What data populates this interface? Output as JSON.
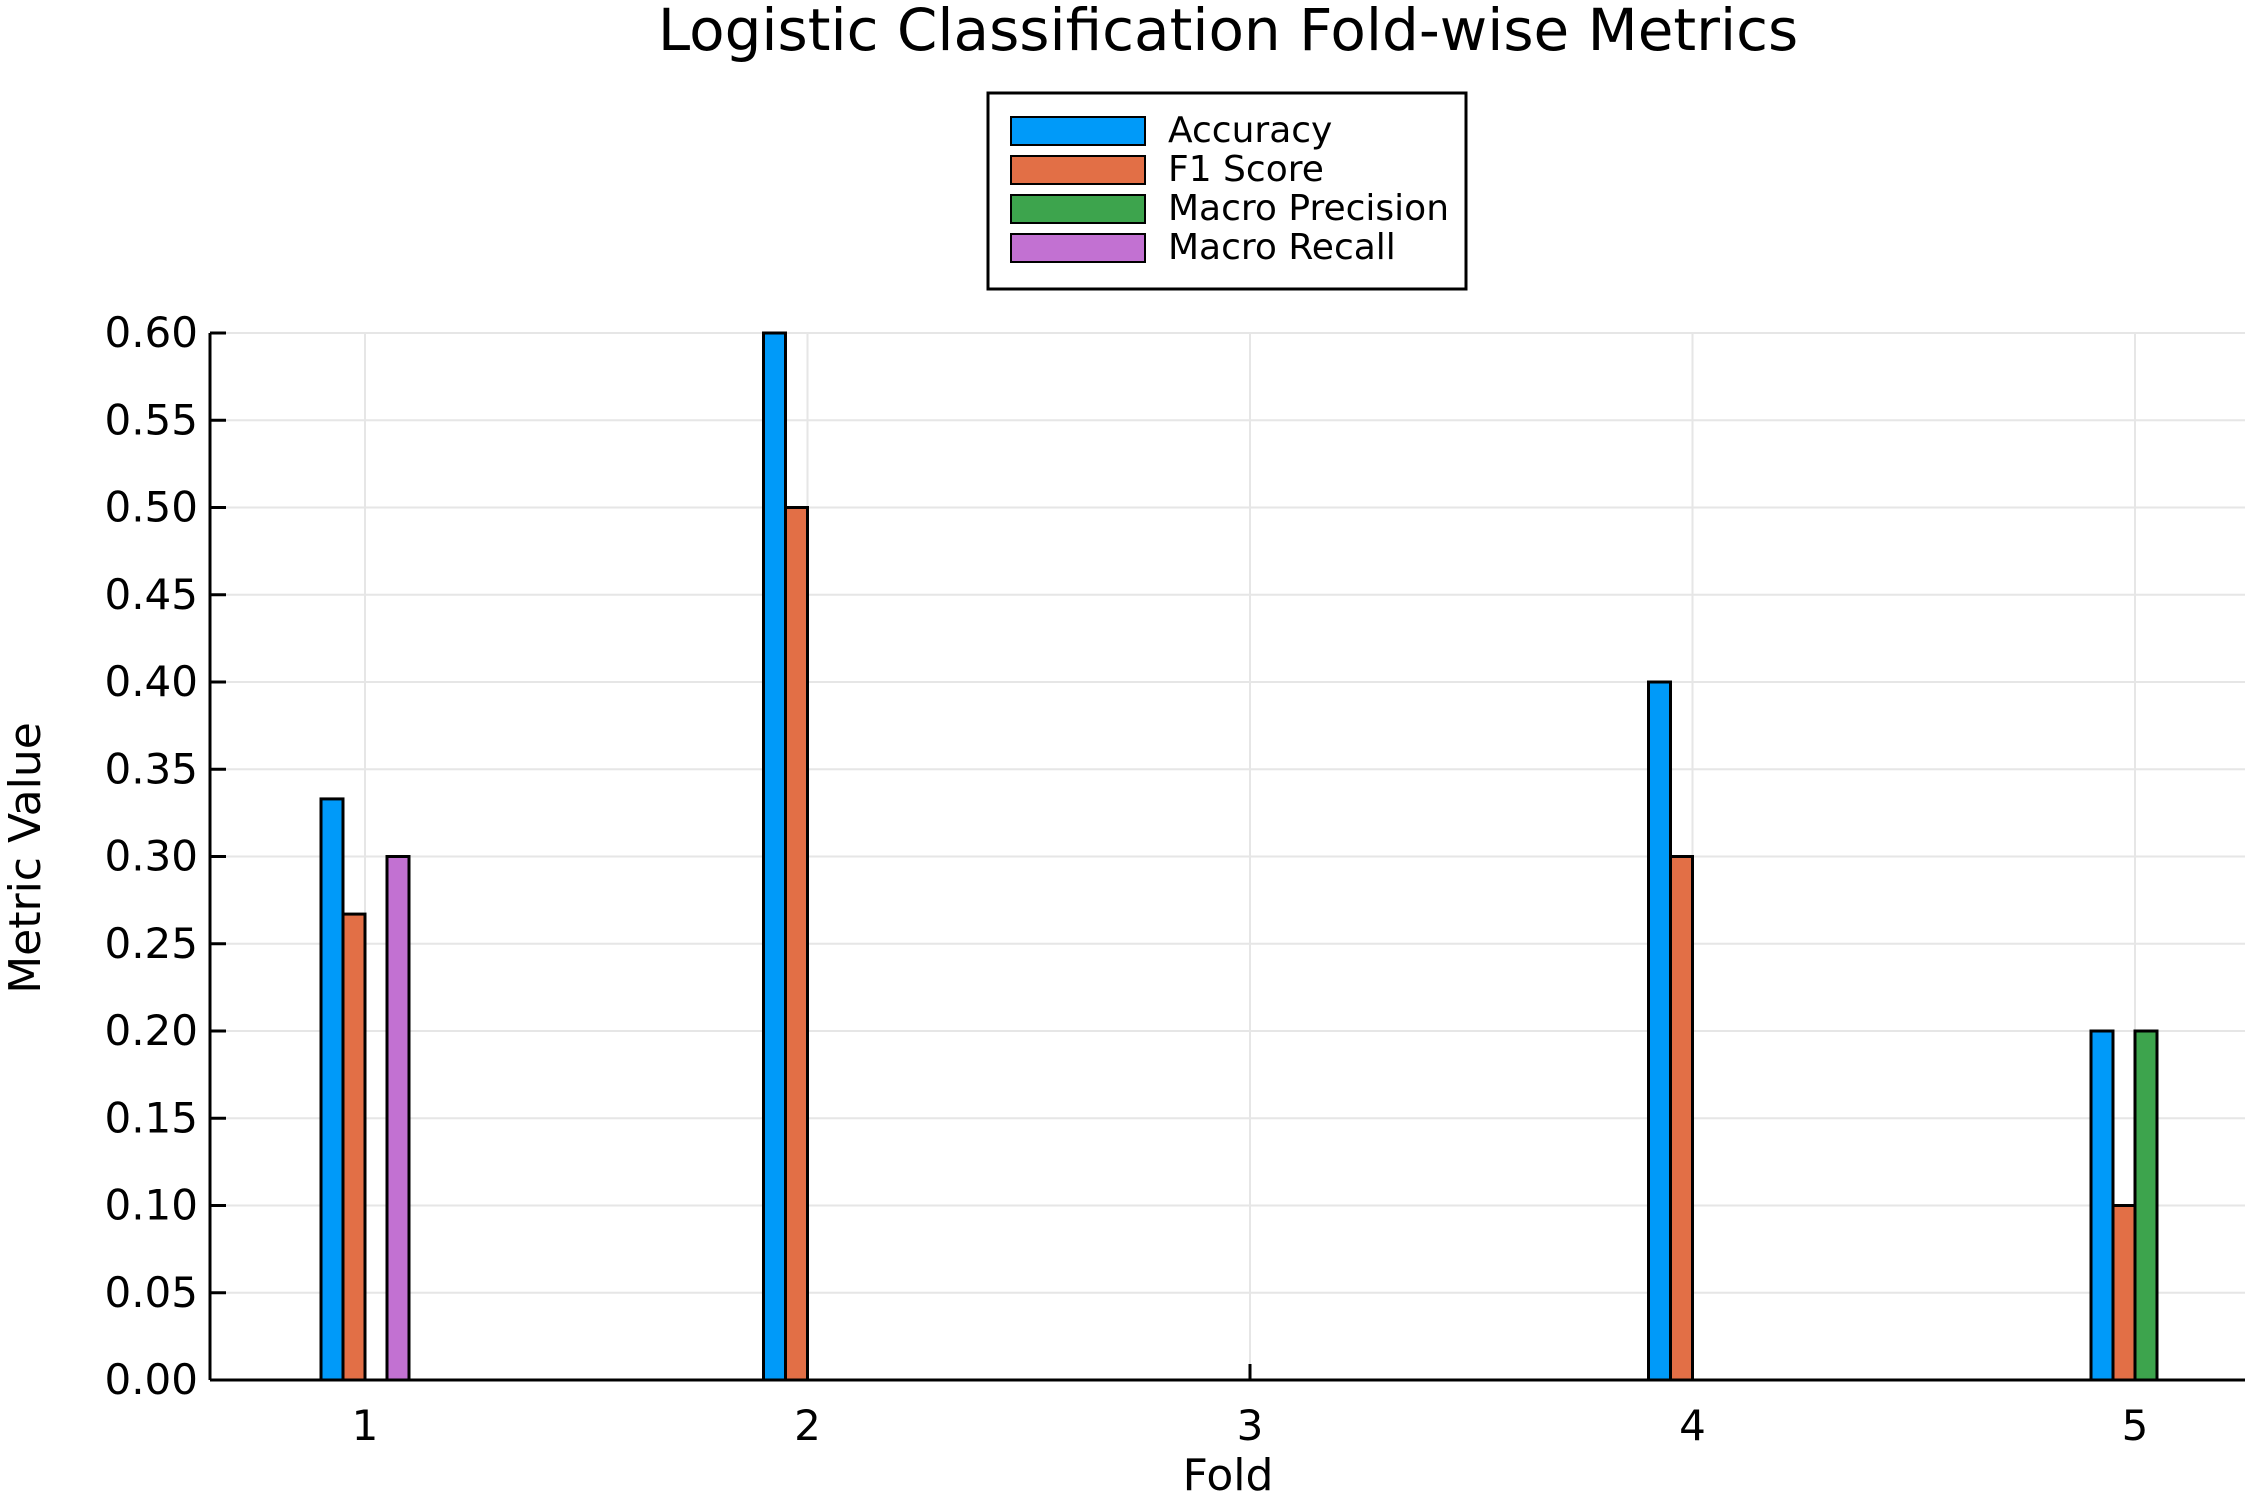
{
  "chart_data": {
    "type": "bar",
    "title": "Logistic Classification Fold-wise Metrics",
    "xlabel": "Fold",
    "ylabel": "Metric Value",
    "categories": [
      "1",
      "2",
      "3",
      "4",
      "5"
    ],
    "series": [
      {
        "name": "Accuracy",
        "color": "#009af9",
        "values": [
          0.333,
          0.6,
          0.0,
          0.4,
          0.2
        ]
      },
      {
        "name": "F1 Score",
        "color": "#e26f46",
        "values": [
          0.267,
          0.5,
          0.0,
          0.3,
          0.1
        ]
      },
      {
        "name": "Macro Precision",
        "color": "#3da44d",
        "values": [
          0.0,
          0.0,
          0.0,
          0.0,
          0.2
        ]
      },
      {
        "name": "Macro Recall",
        "color": "#c271d2",
        "values": [
          0.3,
          0.0,
          0.0,
          0.0,
          0.0
        ]
      }
    ],
    "ylim": [
      0,
      0.6
    ],
    "yticks": [
      "0.00",
      "0.05",
      "0.10",
      "0.15",
      "0.20",
      "0.25",
      "0.30",
      "0.35",
      "0.40",
      "0.45",
      "0.50",
      "0.55",
      "0.60"
    ],
    "grid": true,
    "legend": "top-center"
  }
}
